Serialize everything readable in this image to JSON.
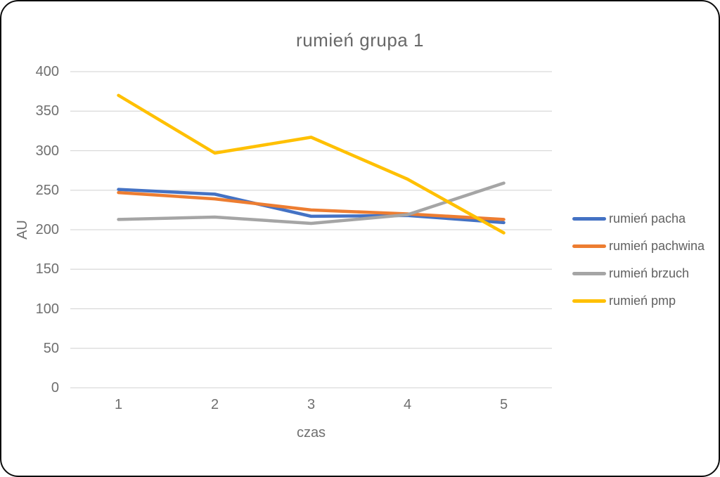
{
  "chart_data": {
    "type": "line",
    "title": "rumień grupa 1",
    "xlabel": "czas",
    "ylabel": "AU",
    "x": [
      1,
      2,
      3,
      4,
      5
    ],
    "series": [
      {
        "name": "rumień pacha",
        "color": "#4472C4",
        "values": [
          251,
          245,
          217,
          218,
          209
        ]
      },
      {
        "name": "rumień pachwina",
        "color": "#ED7D31",
        "values": [
          247,
          239,
          225,
          220,
          213
        ]
      },
      {
        "name": "rumień brzuch",
        "color": "#A5A5A5",
        "values": [
          213,
          216,
          208,
          219,
          259
        ]
      },
      {
        "name": "rumień pmp",
        "color": "#FFC000",
        "values": [
          370,
          297,
          317,
          264,
          196
        ]
      }
    ],
    "ylim": [
      0,
      400
    ],
    "y_ticks": [
      0,
      50,
      100,
      150,
      200,
      250,
      300,
      350,
      400
    ],
    "grid": "horizontal-only",
    "legend_position": "right",
    "colors": {
      "gridline": "#D9D9D9",
      "axis_line": "#D9D9D9",
      "text": "#6f6f6f",
      "frame_border": "#0d0d0d"
    }
  }
}
